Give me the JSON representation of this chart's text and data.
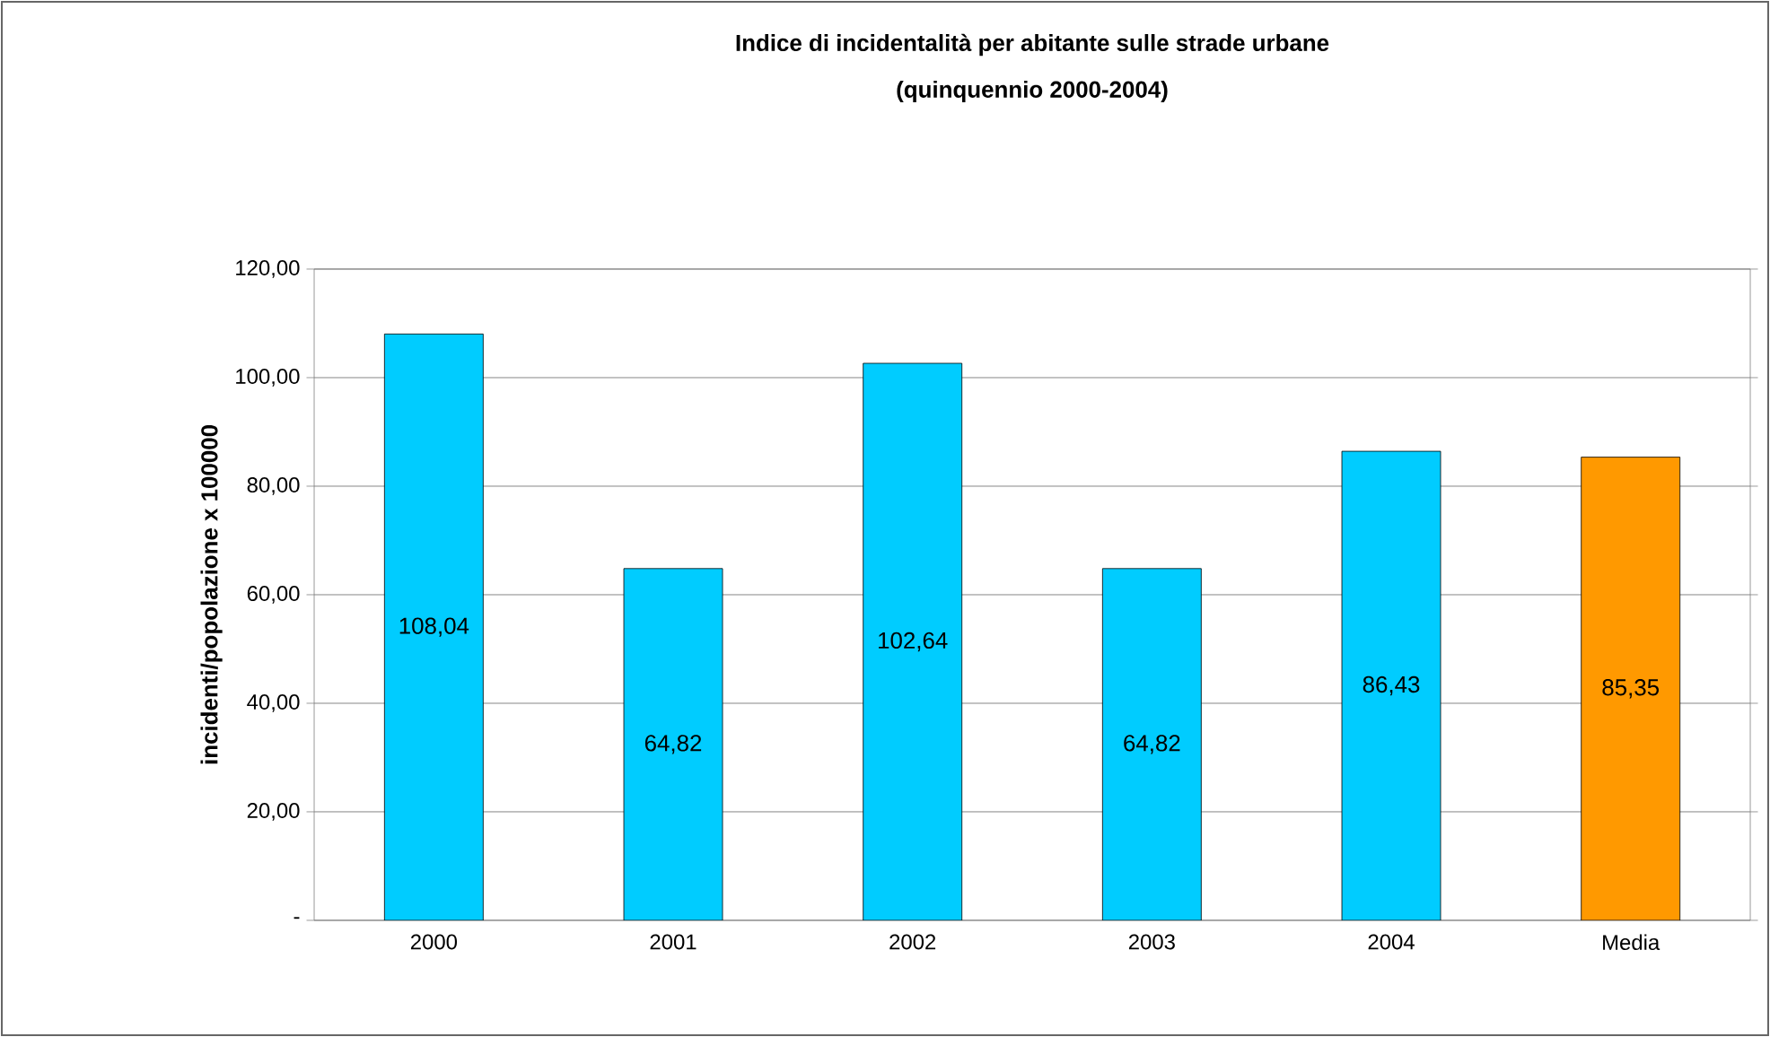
{
  "chart_data": {
    "type": "bar",
    "title": "Indice di incidentalità per abitante sulle strade urbane",
    "subtitle": "(quinquennio 2000-2004)",
    "ylabel": "incidenti/popolazione x 100000",
    "categories": [
      "2000",
      "2001",
      "2002",
      "2003",
      "2004",
      "Media"
    ],
    "values": [
      108.04,
      64.82,
      102.64,
      64.82,
      86.43,
      85.35
    ],
    "colors": [
      "#00ccff",
      "#00ccff",
      "#00ccff",
      "#00ccff",
      "#00ccff",
      "#ff9900"
    ],
    "value_labels": [
      "108,04",
      "64,82",
      "102,64",
      "64,82",
      "86,43",
      "85,35"
    ],
    "ylim": [
      0,
      120
    ],
    "yticks": [
      {
        "value": 0,
        "label": "-"
      },
      {
        "value": 20,
        "label": "20,00"
      },
      {
        "value": 40,
        "label": "40,00"
      },
      {
        "value": 60,
        "label": "60,00"
      },
      {
        "value": 80,
        "label": "80,00"
      },
      {
        "value": 100,
        "label": "100,00"
      },
      {
        "value": 120,
        "label": "120,00"
      }
    ],
    "grid": "y"
  }
}
